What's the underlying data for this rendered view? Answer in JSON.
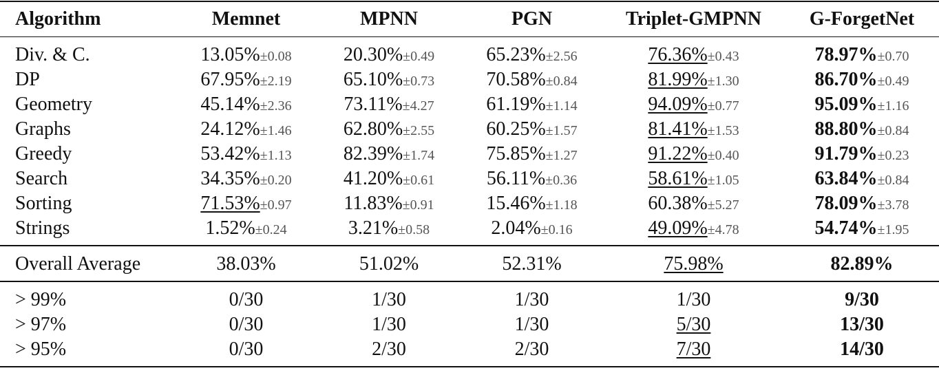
{
  "table": {
    "header": [
      "Algorithm",
      "Memnet",
      "MPNN",
      "PGN",
      "Triplet-GMPNN",
      "G-ForgetNet"
    ],
    "sections": [
      {
        "rows": [
          {
            "label": "Div. & C.",
            "cells": [
              {
                "mean": "13.05%",
                "std": "±0.08"
              },
              {
                "mean": "20.30%",
                "std": "±0.49"
              },
              {
                "mean": "65.23%",
                "std": "±2.56"
              },
              {
                "mean": "76.36%",
                "std": "±0.43",
                "underline": true
              },
              {
                "mean": "78.97%",
                "std": "±0.70"
              }
            ]
          },
          {
            "label": "DP",
            "cells": [
              {
                "mean": "67.95%",
                "std": "±2.19"
              },
              {
                "mean": "65.10%",
                "std": "±0.73"
              },
              {
                "mean": "70.58%",
                "std": "±0.84"
              },
              {
                "mean": "81.99%",
                "std": "±1.30",
                "underline": true
              },
              {
                "mean": "86.70%",
                "std": "±0.49"
              }
            ]
          },
          {
            "label": "Geometry",
            "cells": [
              {
                "mean": "45.14%",
                "std": "±2.36"
              },
              {
                "mean": "73.11%",
                "std": "±4.27"
              },
              {
                "mean": "61.19%",
                "std": "±1.14"
              },
              {
                "mean": "94.09%",
                "std": "±0.77",
                "underline": true
              },
              {
                "mean": "95.09%",
                "std": "±1.16"
              }
            ]
          },
          {
            "label": "Graphs",
            "cells": [
              {
                "mean": "24.12%",
                "std": "±1.46"
              },
              {
                "mean": "62.80%",
                "std": "±2.55"
              },
              {
                "mean": "60.25%",
                "std": "±1.57"
              },
              {
                "mean": "81.41%",
                "std": "±1.53",
                "underline": true
              },
              {
                "mean": "88.80%",
                "std": "±0.84"
              }
            ]
          },
          {
            "label": "Greedy",
            "cells": [
              {
                "mean": "53.42%",
                "std": "±1.13"
              },
              {
                "mean": "82.39%",
                "std": "±1.74"
              },
              {
                "mean": "75.85%",
                "std": "±1.27"
              },
              {
                "mean": "91.22%",
                "std": "±0.40",
                "underline": true
              },
              {
                "mean": "91.79%",
                "std": "±0.23"
              }
            ]
          },
          {
            "label": "Search",
            "cells": [
              {
                "mean": "34.35%",
                "std": "±0.20"
              },
              {
                "mean": "41.20%",
                "std": "±0.61"
              },
              {
                "mean": "56.11%",
                "std": "±0.36"
              },
              {
                "mean": "58.61%",
                "std": "±1.05",
                "underline": true
              },
              {
                "mean": "63.84%",
                "std": "±0.84"
              }
            ]
          },
          {
            "label": "Sorting",
            "cells": [
              {
                "mean": "71.53%",
                "std": "±0.97",
                "underline": true
              },
              {
                "mean": "11.83%",
                "std": "±0.91"
              },
              {
                "mean": "15.46%",
                "std": "±1.18"
              },
              {
                "mean": "60.38%",
                "std": "±5.27"
              },
              {
                "mean": "78.09%",
                "std": "±3.78"
              }
            ]
          },
          {
            "label": "Strings",
            "cells": [
              {
                "mean": "1.52%",
                "std": "±0.24"
              },
              {
                "mean": "3.21%",
                "std": "±0.58"
              },
              {
                "mean": "2.04%",
                "std": "±0.16"
              },
              {
                "mean": "49.09%",
                "std": "±4.78",
                "underline": true
              },
              {
                "mean": "54.74%",
                "std": "±1.95"
              }
            ]
          }
        ]
      },
      {
        "rows": [
          {
            "label": "Overall Average",
            "cells": [
              {
                "mean": "38.03%"
              },
              {
                "mean": "51.02%"
              },
              {
                "mean": "52.31%"
              },
              {
                "mean": "75.98%",
                "underline": true
              },
              {
                "mean": "82.89%"
              }
            ]
          }
        ]
      },
      {
        "rows": [
          {
            "label": "> 99%",
            "cells": [
              {
                "mean": "0/30"
              },
              {
                "mean": "1/30"
              },
              {
                "mean": "1/30"
              },
              {
                "mean": "1/30"
              },
              {
                "mean": "9/30"
              }
            ]
          },
          {
            "label": "> 97%",
            "cells": [
              {
                "mean": "0/30"
              },
              {
                "mean": "1/30"
              },
              {
                "mean": "1/30"
              },
              {
                "mean": "5/30",
                "underline": true
              },
              {
                "mean": "13/30"
              }
            ]
          },
          {
            "label": "> 95%",
            "cells": [
              {
                "mean": "0/30"
              },
              {
                "mean": "2/30"
              },
              {
                "mean": "2/30"
              },
              {
                "mean": "7/30",
                "underline": true
              },
              {
                "mean": "14/30"
              }
            ]
          }
        ]
      }
    ]
  }
}
